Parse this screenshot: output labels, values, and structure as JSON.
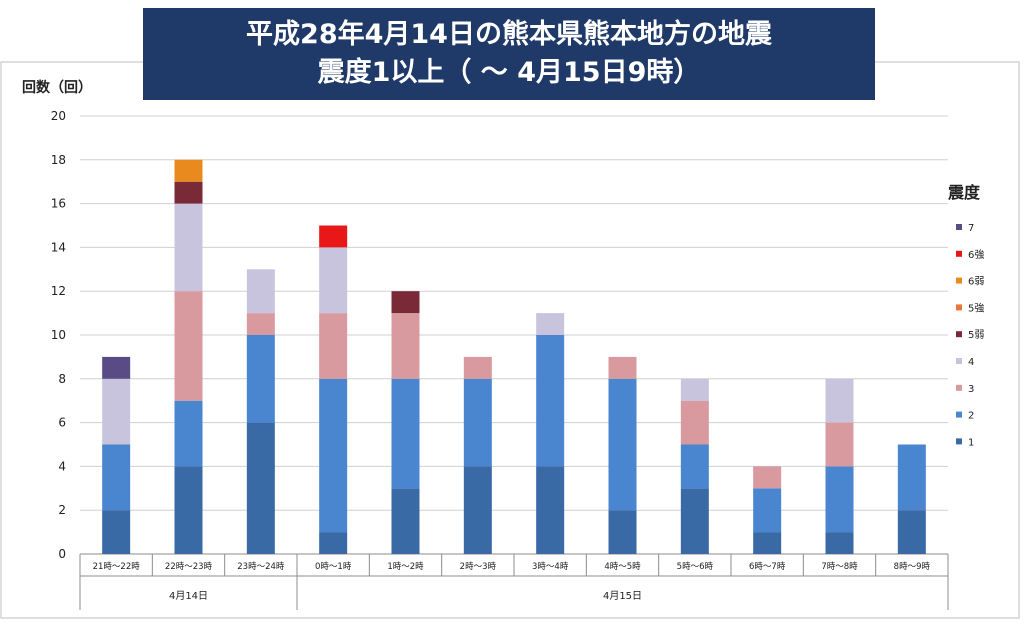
{
  "title_lines": [
    "平成28年4月14日の熊本県熊本地方の地震",
    "震度1以上（ ～ 4月15日9時）"
  ],
  "chart_data": {
    "type": "bar",
    "stacked": true,
    "title": "平成28年4月14日の熊本県熊本地方の地震 震度1以上（ ～ 4月15日9時）",
    "ylabel": "回数（回）",
    "ylim": [
      0,
      20
    ],
    "yticks": [
      0,
      2,
      4,
      6,
      8,
      10,
      12,
      14,
      16,
      18,
      20
    ],
    "grid": true,
    "legend_title": "震度",
    "legend_position": "right",
    "categories": [
      "21時～22時",
      "22時～23時",
      "23時～24時",
      "0時～1時",
      "1時～2時",
      "2時～3時",
      "3時～4時",
      "4時～5時",
      "5時～6時",
      "6時～7時",
      "7時～8時",
      "8時～9時"
    ],
    "category_groups": [
      {
        "label": "4月14日",
        "count": 3
      },
      {
        "label": "4月15日",
        "count": 9
      }
    ],
    "series": [
      {
        "name": "1",
        "color": "#3a6aa6",
        "values": [
          2,
          4,
          6,
          1,
          3,
          4,
          4,
          2,
          3,
          1,
          1,
          2
        ]
      },
      {
        "name": "2",
        "color": "#4a86d0",
        "values": [
          3,
          3,
          4,
          7,
          5,
          4,
          6,
          6,
          2,
          2,
          3,
          3
        ]
      },
      {
        "name": "3",
        "color": "#d89a9e",
        "values": [
          0,
          5,
          1,
          3,
          3,
          1,
          0,
          1,
          2,
          1,
          2,
          0
        ]
      },
      {
        "name": "4",
        "color": "#c8c4de",
        "values": [
          3,
          4,
          2,
          3,
          0,
          0,
          1,
          0,
          1,
          0,
          2,
          0
        ]
      },
      {
        "name": "5弱",
        "color": "#7a2a36",
        "values": [
          0,
          1,
          0,
          0,
          1,
          0,
          0,
          0,
          0,
          0,
          0,
          0
        ]
      },
      {
        "name": "5強",
        "color": "#e8763a",
        "values": [
          0,
          0,
          0,
          0,
          0,
          0,
          0,
          0,
          0,
          0,
          0,
          0
        ]
      },
      {
        "name": "6弱",
        "color": "#e88a1e",
        "values": [
          0,
          1,
          0,
          0,
          0,
          0,
          0,
          0,
          0,
          0,
          0,
          0
        ]
      },
      {
        "name": "6強",
        "color": "#e81818",
        "values": [
          0,
          0,
          0,
          1,
          0,
          0,
          0,
          0,
          0,
          0,
          0,
          0
        ]
      },
      {
        "name": "7",
        "color": "#5a4a86",
        "values": [
          1,
          0,
          0,
          0,
          0,
          0,
          0,
          0,
          0,
          0,
          0,
          0
        ]
      }
    ]
  }
}
